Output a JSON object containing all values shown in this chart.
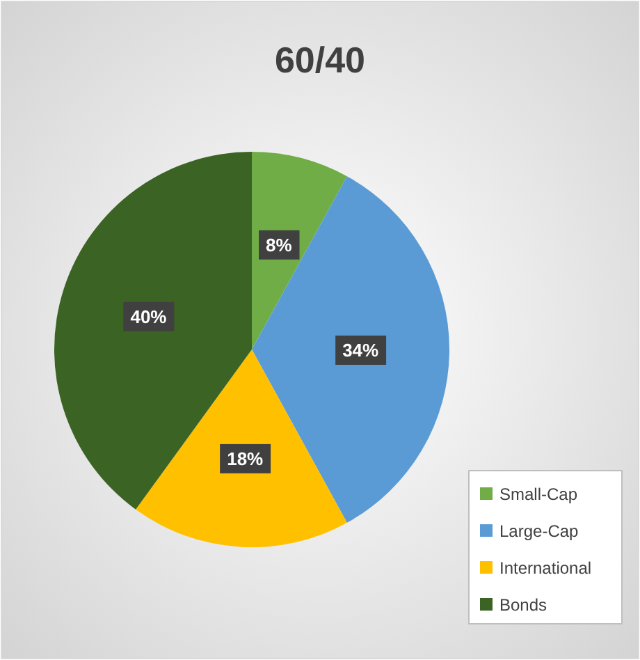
{
  "chart_data": {
    "type": "pie",
    "title": "60/40",
    "categories": [
      "Small-Cap",
      "Large-Cap",
      "International",
      "Bonds"
    ],
    "values": [
      8,
      34,
      18,
      40
    ],
    "value_labels": [
      "8%",
      "34%",
      "18%",
      "40%"
    ],
    "colors": [
      "#70ad47",
      "#5b9bd5",
      "#ffc000",
      "#3a6324"
    ],
    "legend": "bottom right"
  }
}
